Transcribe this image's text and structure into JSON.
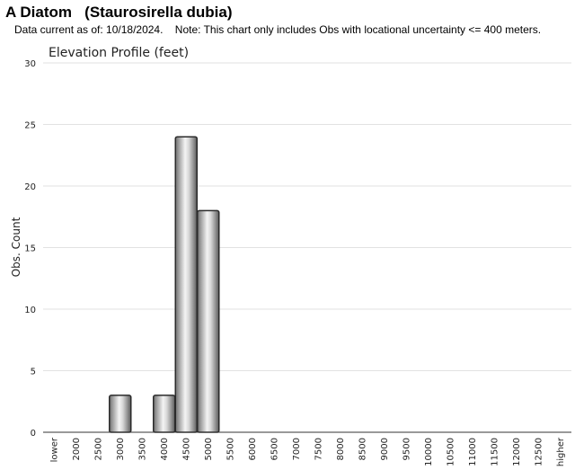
{
  "header": {
    "title": "A Diatom   (Staurosirella dubia)",
    "note": "Data current as of: 10/18/2024.    Note: This chart only includes Obs with locational uncertainty <= 400 meters."
  },
  "chart_data": {
    "type": "bar",
    "title": "Elevation Profile (feet)",
    "xlabel": "",
    "ylabel": "Obs. Count",
    "ylim": [
      0,
      30
    ],
    "yticks": [
      0,
      5,
      10,
      15,
      20,
      25,
      30
    ],
    "grid": true,
    "legend": "none",
    "categories": [
      "lower",
      "2000",
      "2500",
      "3000",
      "3500",
      "4000",
      "4500",
      "5000",
      "5500",
      "6000",
      "6500",
      "7000",
      "7500",
      "8000",
      "8500",
      "9000",
      "9500",
      "10000",
      "10500",
      "11000",
      "11500",
      "12000",
      "12500",
      "higher"
    ],
    "values": [
      0,
      0,
      0,
      3,
      0,
      3,
      24,
      18,
      0,
      0,
      0,
      0,
      0,
      0,
      0,
      0,
      0,
      0,
      0,
      0,
      0,
      0,
      0,
      0
    ]
  }
}
